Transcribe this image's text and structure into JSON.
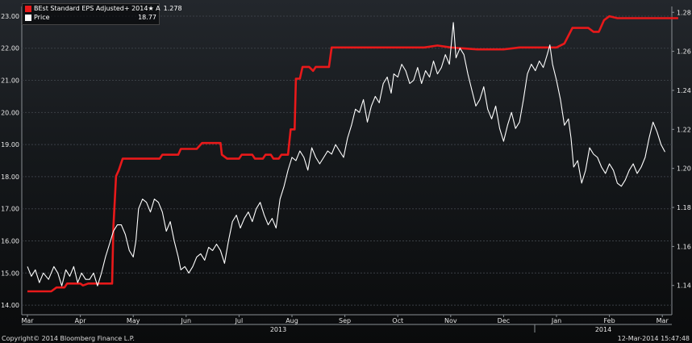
{
  "chart_data": {
    "type": "line",
    "title": "",
    "x_months": [
      "Mar",
      "Apr",
      "May",
      "Jun",
      "Jul",
      "Aug",
      "Sep",
      "Oct",
      "Nov",
      "Dec",
      "Jan",
      "Feb",
      "Mar"
    ],
    "year_labels": [
      "2013",
      "2014"
    ],
    "y_left": {
      "ticks": [
        "14.00",
        "15.00",
        "16.00",
        "17.00",
        "18.00",
        "19.00",
        "20.00",
        "21.00",
        "22.00",
        "23.00"
      ],
      "range": [
        13.7,
        23.3
      ]
    },
    "y_right": {
      "ticks": [
        "1.14",
        "1.16",
        "1.18",
        "1.20",
        "1.22",
        "1.24",
        "1.26",
        "1.28"
      ],
      "range": [
        1.125,
        1.283
      ]
    },
    "series": [
      {
        "name": "BEst Standard EPS Adjusted+ 2014★ A",
        "legend_value": "1.278",
        "color": "#e8191a",
        "axis": "right",
        "points": [
          [
            0,
            1.137
          ],
          [
            0.9,
            1.137
          ],
          [
            1.1,
            1.139
          ],
          [
            1.4,
            1.139
          ],
          [
            1.5,
            1.141
          ],
          [
            2.0,
            1.141
          ],
          [
            2.1,
            1.14
          ],
          [
            2.3,
            1.141
          ],
          [
            3.2,
            1.141
          ],
          [
            3.25,
            1.17
          ],
          [
            3.35,
            1.196
          ],
          [
            3.45,
            1.199
          ],
          [
            3.6,
            1.205
          ],
          [
            4.0,
            1.205
          ],
          [
            5.0,
            1.205
          ],
          [
            5.1,
            1.207
          ],
          [
            5.7,
            1.207
          ],
          [
            5.8,
            1.21
          ],
          [
            6.4,
            1.21
          ],
          [
            6.6,
            1.213
          ],
          [
            7.3,
            1.213
          ],
          [
            7.35,
            1.207
          ],
          [
            7.55,
            1.205
          ],
          [
            7.7,
            1.205
          ],
          [
            8.0,
            1.205
          ],
          [
            8.1,
            1.207
          ],
          [
            8.5,
            1.207
          ],
          [
            8.6,
            1.205
          ],
          [
            8.9,
            1.205
          ],
          [
            9.0,
            1.207
          ],
          [
            9.2,
            1.207
          ],
          [
            9.3,
            1.205
          ],
          [
            9.5,
            1.205
          ],
          [
            9.6,
            1.207
          ],
          [
            9.85,
            1.207
          ],
          [
            9.95,
            1.22
          ],
          [
            10.1,
            1.22
          ],
          [
            10.15,
            1.246
          ],
          [
            10.3,
            1.246
          ],
          [
            10.4,
            1.252
          ],
          [
            10.55,
            1.252
          ],
          [
            10.65,
            1.252
          ],
          [
            10.8,
            1.25
          ],
          [
            10.9,
            1.252
          ],
          [
            11.4,
            1.252
          ],
          [
            11.5,
            1.262
          ],
          [
            12.0,
            1.262
          ],
          [
            13.0,
            1.262
          ],
          [
            14.0,
            1.262
          ],
          [
            15.0,
            1.262
          ],
          [
            15.5,
            1.263
          ],
          [
            16.0,
            1.262
          ],
          [
            17.0,
            1.261
          ],
          [
            18.0,
            1.261
          ],
          [
            18.6,
            1.262
          ],
          [
            19.0,
            1.262
          ],
          [
            19.6,
            1.262
          ],
          [
            20.0,
            1.262
          ],
          [
            20.3,
            1.264
          ],
          [
            20.6,
            1.272
          ],
          [
            21.0,
            1.272
          ],
          [
            21.2,
            1.272
          ],
          [
            21.4,
            1.27
          ],
          [
            21.6,
            1.27
          ],
          [
            21.8,
            1.276
          ],
          [
            22.0,
            1.278
          ],
          [
            22.3,
            1.277
          ],
          [
            23.0,
            1.277
          ],
          [
            24.0,
            1.277
          ],
          [
            24.6,
            1.277
          ]
        ]
      },
      {
        "name": "Price",
        "legend_value": "18.77",
        "color": "#ffffff",
        "axis": "left",
        "points": [
          [
            0,
            15.2
          ],
          [
            0.15,
            14.9
          ],
          [
            0.3,
            15.1
          ],
          [
            0.45,
            14.7
          ],
          [
            0.6,
            15.0
          ],
          [
            0.8,
            14.8
          ],
          [
            1.0,
            15.2
          ],
          [
            1.15,
            15.0
          ],
          [
            1.3,
            14.6
          ],
          [
            1.45,
            15.1
          ],
          [
            1.6,
            14.9
          ],
          [
            1.75,
            15.2
          ],
          [
            1.9,
            14.7
          ],
          [
            2.05,
            15.0
          ],
          [
            2.2,
            14.8
          ],
          [
            2.35,
            14.8
          ],
          [
            2.5,
            15.0
          ],
          [
            2.65,
            14.6
          ],
          [
            2.8,
            15.0
          ],
          [
            2.95,
            15.5
          ],
          [
            3.1,
            15.9
          ],
          [
            3.25,
            16.3
          ],
          [
            3.4,
            16.5
          ],
          [
            3.55,
            16.5
          ],
          [
            3.7,
            16.2
          ],
          [
            3.85,
            15.7
          ],
          [
            4.0,
            15.5
          ],
          [
            4.1,
            16.0
          ],
          [
            4.2,
            17.0
          ],
          [
            4.35,
            17.3
          ],
          [
            4.5,
            17.2
          ],
          [
            4.65,
            16.9
          ],
          [
            4.8,
            17.3
          ],
          [
            4.95,
            17.2
          ],
          [
            5.1,
            16.9
          ],
          [
            5.25,
            16.3
          ],
          [
            5.4,
            16.6
          ],
          [
            5.55,
            16.0
          ],
          [
            5.7,
            15.5
          ],
          [
            5.8,
            15.1
          ],
          [
            5.95,
            15.2
          ],
          [
            6.1,
            15.0
          ],
          [
            6.25,
            15.2
          ],
          [
            6.4,
            15.5
          ],
          [
            6.55,
            15.6
          ],
          [
            6.7,
            15.4
          ],
          [
            6.85,
            15.8
          ],
          [
            7.0,
            15.7
          ],
          [
            7.15,
            15.9
          ],
          [
            7.3,
            15.7
          ],
          [
            7.45,
            15.3
          ],
          [
            7.6,
            16.0
          ],
          [
            7.75,
            16.6
          ],
          [
            7.9,
            16.8
          ],
          [
            8.05,
            16.4
          ],
          [
            8.2,
            16.7
          ],
          [
            8.35,
            16.9
          ],
          [
            8.5,
            16.6
          ],
          [
            8.65,
            17.0
          ],
          [
            8.8,
            17.2
          ],
          [
            8.95,
            16.8
          ],
          [
            9.1,
            16.5
          ],
          [
            9.25,
            16.7
          ],
          [
            9.4,
            16.4
          ],
          [
            9.55,
            17.3
          ],
          [
            9.7,
            17.7
          ],
          [
            9.85,
            18.2
          ],
          [
            10.0,
            18.6
          ],
          [
            10.15,
            18.5
          ],
          [
            10.3,
            18.8
          ],
          [
            10.45,
            18.6
          ],
          [
            10.6,
            18.2
          ],
          [
            10.75,
            18.9
          ],
          [
            10.9,
            18.6
          ],
          [
            11.05,
            18.4
          ],
          [
            11.2,
            18.6
          ],
          [
            11.35,
            18.8
          ],
          [
            11.5,
            18.7
          ],
          [
            11.65,
            19.0
          ],
          [
            11.8,
            18.8
          ],
          [
            11.95,
            18.6
          ],
          [
            12.1,
            19.2
          ],
          [
            12.25,
            19.6
          ],
          [
            12.4,
            20.1
          ],
          [
            12.55,
            20.0
          ],
          [
            12.7,
            20.4
          ],
          [
            12.85,
            19.7
          ],
          [
            13.0,
            20.2
          ],
          [
            13.15,
            20.5
          ],
          [
            13.3,
            20.3
          ],
          [
            13.45,
            20.9
          ],
          [
            13.6,
            21.1
          ],
          [
            13.75,
            20.6
          ],
          [
            13.85,
            21.2
          ],
          [
            14.0,
            21.1
          ],
          [
            14.15,
            21.5
          ],
          [
            14.3,
            21.3
          ],
          [
            14.45,
            20.9
          ],
          [
            14.6,
            21.0
          ],
          [
            14.75,
            21.4
          ],
          [
            14.9,
            20.9
          ],
          [
            15.05,
            21.3
          ],
          [
            15.2,
            21.1
          ],
          [
            15.35,
            21.6
          ],
          [
            15.5,
            21.2
          ],
          [
            15.65,
            21.4
          ],
          [
            15.8,
            21.8
          ],
          [
            15.95,
            21.5
          ],
          [
            16.1,
            22.8
          ],
          [
            16.2,
            21.7
          ],
          [
            16.35,
            22.0
          ],
          [
            16.5,
            21.8
          ],
          [
            16.65,
            21.2
          ],
          [
            16.8,
            20.7
          ],
          [
            16.95,
            20.2
          ],
          [
            17.1,
            20.4
          ],
          [
            17.25,
            20.8
          ],
          [
            17.4,
            20.1
          ],
          [
            17.55,
            19.8
          ],
          [
            17.7,
            20.2
          ],
          [
            17.85,
            19.5
          ],
          [
            18.0,
            19.1
          ],
          [
            18.15,
            19.6
          ],
          [
            18.3,
            20.0
          ],
          [
            18.45,
            19.5
          ],
          [
            18.6,
            19.7
          ],
          [
            18.75,
            20.4
          ],
          [
            18.9,
            21.2
          ],
          [
            19.05,
            21.5
          ],
          [
            19.2,
            21.3
          ],
          [
            19.35,
            21.6
          ],
          [
            19.5,
            21.4
          ],
          [
            19.65,
            21.8
          ],
          [
            19.75,
            22.1
          ],
          [
            19.85,
            21.5
          ],
          [
            20.0,
            21.0
          ],
          [
            20.15,
            20.4
          ],
          [
            20.3,
            19.6
          ],
          [
            20.45,
            19.8
          ],
          [
            20.55,
            19.2
          ],
          [
            20.65,
            18.3
          ],
          [
            20.8,
            18.5
          ],
          [
            20.95,
            17.8
          ],
          [
            21.1,
            18.2
          ],
          [
            21.25,
            18.9
          ],
          [
            21.4,
            18.7
          ],
          [
            21.55,
            18.6
          ],
          [
            21.7,
            18.3
          ],
          [
            21.85,
            18.1
          ],
          [
            22.0,
            18.4
          ],
          [
            22.15,
            18.2
          ],
          [
            22.3,
            17.8
          ],
          [
            22.45,
            17.7
          ],
          [
            22.6,
            17.9
          ],
          [
            22.75,
            18.2
          ],
          [
            22.9,
            18.4
          ],
          [
            23.05,
            18.1
          ],
          [
            23.2,
            18.3
          ],
          [
            23.35,
            18.6
          ],
          [
            23.5,
            19.2
          ],
          [
            23.65,
            19.7
          ],
          [
            23.8,
            19.4
          ],
          [
            23.95,
            19.0
          ],
          [
            24.1,
            18.77
          ]
        ]
      }
    ],
    "legend_placement": "top-left",
    "grid": "horizontal dashed"
  },
  "footer": {
    "copyright": "Copyright© 2014 Bloomberg Finance L.P.",
    "timestamp": "12-Mar-2014 15:47:48"
  },
  "colors": {
    "eps_line": "#e8191a",
    "price_line": "#ffffff",
    "grid": "#3a3f45",
    "text": "#e8e8e8"
  }
}
